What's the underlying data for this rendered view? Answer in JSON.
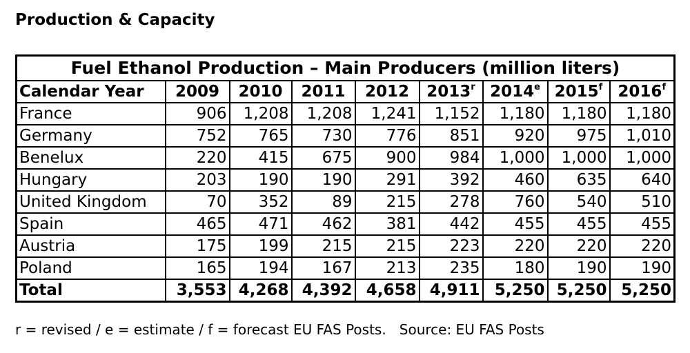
{
  "title": "Production & Capacity",
  "table": {
    "caption": "Fuel Ethanol Production – Main Producers (million liters)",
    "header": [
      "Calendar Year",
      "2009",
      "2010",
      "2011",
      "2012",
      {
        "text": "2013",
        "sup": "r"
      },
      {
        "text": "2014",
        "sup": "e"
      },
      {
        "text": "2015",
        "sup": "f"
      },
      {
        "text": "2016",
        "sup": "f"
      }
    ],
    "rows": [
      [
        "France",
        "906",
        "1,208",
        "1,208",
        "1,241",
        "1,152",
        "1,180",
        "1,180",
        "1,180"
      ],
      [
        "Germany",
        "752",
        "765",
        "730",
        "776",
        "851",
        "920",
        "975",
        "1,010"
      ],
      [
        "Benelux",
        "220",
        "415",
        "675",
        "900",
        "984",
        "1,000",
        "1,000",
        "1,000"
      ],
      [
        "Hungary",
        "203",
        "190",
        "190",
        "291",
        "392",
        "460",
        "635",
        "640"
      ],
      [
        "United Kingdom",
        "70",
        "352",
        "89",
        "215",
        "278",
        "760",
        "540",
        "510"
      ],
      [
        "Spain",
        "465",
        "471",
        "462",
        "381",
        "442",
        "455",
        "455",
        "455"
      ],
      [
        "Austria",
        "175",
        "199",
        "215",
        "215",
        "223",
        "220",
        "220",
        "220"
      ],
      [
        "Poland",
        "165",
        "194",
        "167",
        "213",
        "235",
        "180",
        "190",
        "190"
      ]
    ],
    "total": [
      "Total",
      "3,553",
      "4,268",
      "4,392",
      "4,658",
      "4,911",
      "5,250",
      "5,250",
      "5,250"
    ]
  },
  "footnote": "r = revised / e = estimate / f = forecast EU FAS Posts.   Source: EU FAS Posts"
}
